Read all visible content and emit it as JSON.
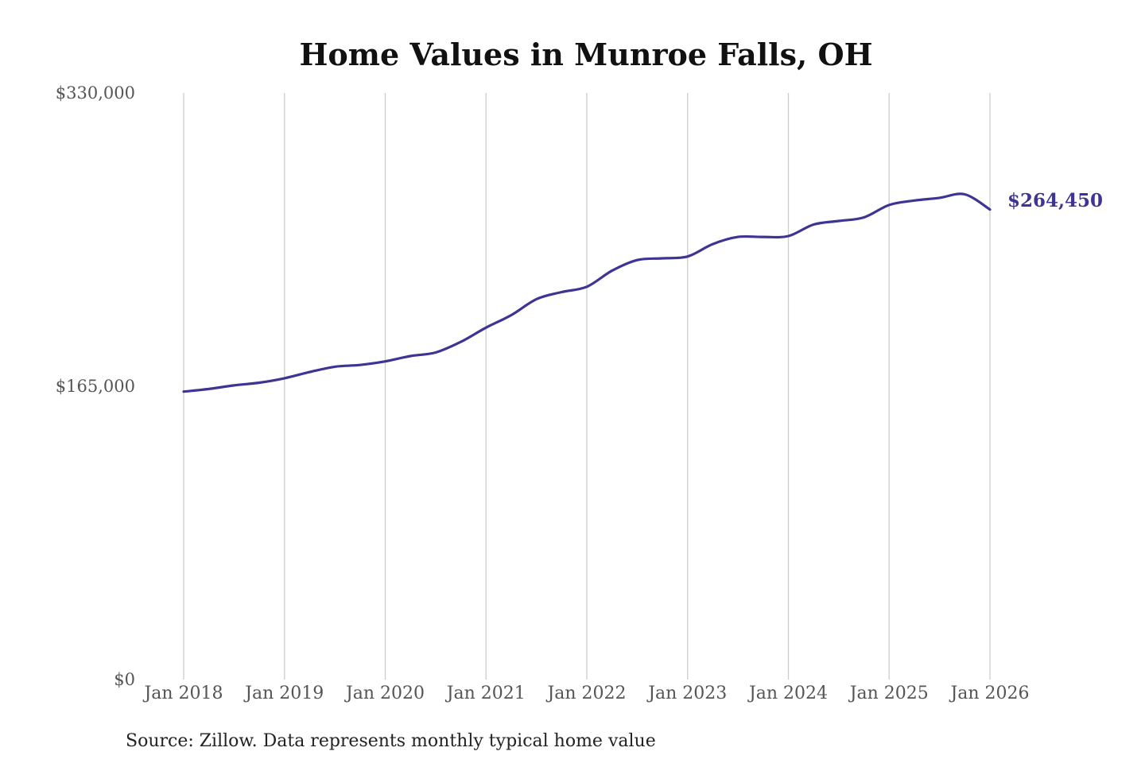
{
  "chart_data": {
    "type": "line",
    "title": "Home Values in Munroe Falls, OH",
    "xlabel": "",
    "ylabel": "",
    "source": "Source: Zillow. Data represents monthly typical home value",
    "ylim": [
      0,
      330000
    ],
    "y_ticks": [
      "$330,000",
      "$165,000",
      "$0"
    ],
    "y_tick_values": [
      330000,
      165000,
      0
    ],
    "x_ticks": [
      "Jan 2018",
      "Jan 2019",
      "Jan 2020",
      "Jan 2021",
      "Jan 2022",
      "Jan 2023",
      "Jan 2024",
      "Jan 2025",
      "Jan 2026"
    ],
    "grid": "vertical",
    "end_label": "$264,450",
    "line_color": "#3d3494",
    "series": [
      {
        "x": [
          "2018-01",
          "2018-04",
          "2018-07",
          "2018-10",
          "2019-01",
          "2019-04",
          "2019-07",
          "2019-10",
          "2020-01",
          "2020-04",
          "2020-07",
          "2020-10",
          "2021-01",
          "2021-04",
          "2021-07",
          "2021-10",
          "2022-01",
          "2022-04",
          "2022-07",
          "2022-10",
          "2023-01",
          "2023-04",
          "2023-07",
          "2023-10",
          "2024-01",
          "2024-04",
          "2024-07",
          "2024-10",
          "2025-01",
          "2025-04",
          "2025-07",
          "2025-10",
          "2026-01"
        ],
        "values": [
          162000,
          163500,
          165500,
          167000,
          169500,
          173000,
          176000,
          177000,
          179000,
          182000,
          184000,
          190000,
          198000,
          205000,
          214000,
          218000,
          221000,
          230000,
          236000,
          237000,
          238000,
          245000,
          249000,
          249000,
          249500,
          256000,
          258000,
          260000,
          267000,
          269500,
          271000,
          273000,
          264450
        ]
      }
    ]
  }
}
